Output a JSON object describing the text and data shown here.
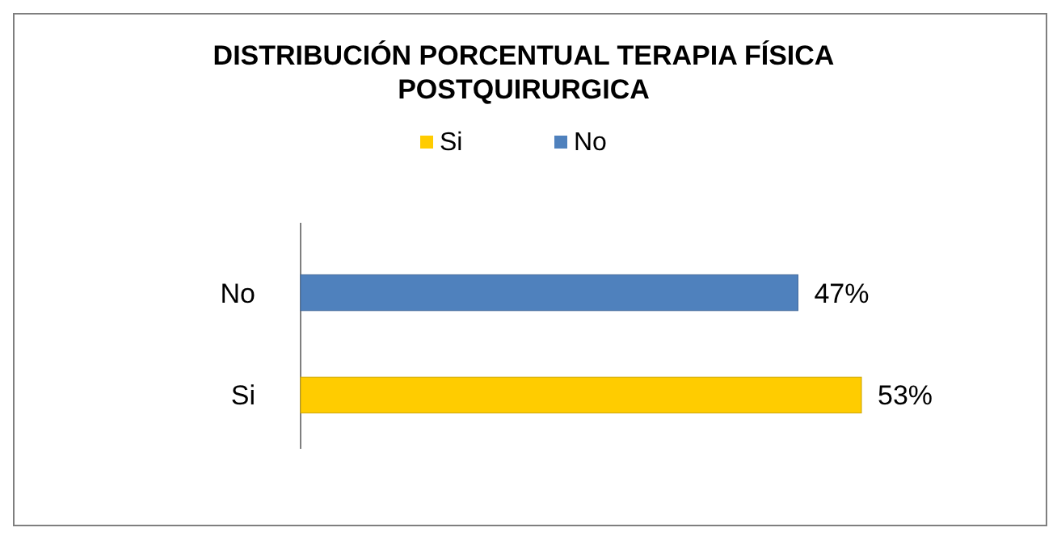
{
  "chart_data": {
    "type": "bar",
    "orientation": "horizontal",
    "title": "DISTRIBUCIÓN PORCENTUAL TERAPIA FÍSICA POSTQUIRURGICA",
    "categories": [
      "No",
      "Si"
    ],
    "series": [
      {
        "name": "Si",
        "color": "#ffcc00",
        "values": [
          null,
          53
        ],
        "value_labels": [
          null,
          "53%"
        ]
      },
      {
        "name": "No",
        "color": "#4f81bd",
        "values": [
          47,
          null
        ],
        "value_labels": [
          "47%",
          null
        ]
      }
    ],
    "legend": "top"
  }
}
